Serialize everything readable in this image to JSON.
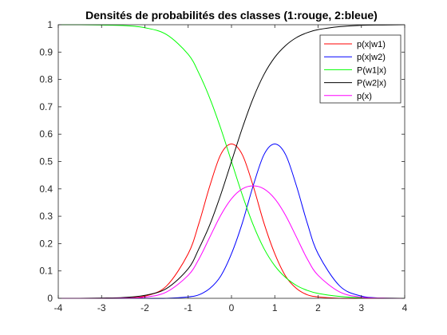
{
  "chart_data": {
    "type": "line",
    "title": "Densités de probabilités des classes (1:rouge, 2:bleue)",
    "xlabel": "",
    "ylabel": "",
    "xlim": [
      -4,
      4
    ],
    "ylim": [
      0,
      1
    ],
    "xticks": [
      -4,
      -3,
      -2,
      -1,
      0,
      1,
      2,
      3,
      4
    ],
    "yticks": [
      0,
      0.1,
      0.2,
      0.3,
      0.4,
      0.5,
      0.6,
      0.7,
      0.8,
      0.9,
      1
    ],
    "grid": false,
    "legend_position": "top-right",
    "x": [
      -4,
      -3.5,
      -3,
      -2.5,
      -2,
      -1.5,
      -1,
      -0.75,
      -0.5,
      -0.25,
      0,
      0.25,
      0.5,
      0.75,
      1,
      1.25,
      1.5,
      1.75,
      2,
      2.5,
      3,
      3.5,
      4
    ],
    "series": [
      {
        "name": "p(x|w1)",
        "color": "#ff0000",
        "values": [
          0,
          0,
          0,
          0.001,
          0.008,
          0.045,
          0.163,
          0.275,
          0.411,
          0.525,
          0.564,
          0.525,
          0.411,
          0.275,
          0.163,
          0.081,
          0.036,
          0.013,
          0.005,
          0,
          0,
          0,
          0
        ]
      },
      {
        "name": "p(x|w2)",
        "color": "#0000ff",
        "values": [
          0,
          0,
          0,
          0,
          0,
          0,
          0.005,
          0.013,
          0.036,
          0.081,
          0.163,
          0.275,
          0.411,
          0.525,
          0.564,
          0.525,
          0.411,
          0.275,
          0.163,
          0.045,
          0.008,
          0.001,
          0
        ]
      },
      {
        "name": "P(w1|x)",
        "color": "#00ff00",
        "values": [
          1,
          1,
          0.999,
          0.997,
          0.989,
          0.964,
          0.892,
          0.822,
          0.731,
          0.622,
          0.5,
          0.378,
          0.269,
          0.182,
          0.119,
          0.076,
          0.047,
          0.029,
          0.018,
          0.007,
          0.002,
          0.001,
          0
        ]
      },
      {
        "name": "P(w2|x)",
        "color": "#000000",
        "values": [
          0,
          0,
          0.001,
          0.003,
          0.011,
          0.036,
          0.108,
          0.182,
          0.269,
          0.378,
          0.5,
          0.622,
          0.731,
          0.818,
          0.881,
          0.924,
          0.953,
          0.971,
          0.982,
          0.993,
          0.998,
          0.999,
          1
        ]
      },
      {
        "name": "p(x)",
        "color": "#ff00ff",
        "values": [
          0,
          0,
          0,
          0.001,
          0.004,
          0.023,
          0.084,
          0.144,
          0.224,
          0.303,
          0.364,
          0.4,
          0.411,
          0.4,
          0.364,
          0.303,
          0.224,
          0.144,
          0.084,
          0.023,
          0.004,
          0.001,
          0
        ]
      }
    ]
  }
}
